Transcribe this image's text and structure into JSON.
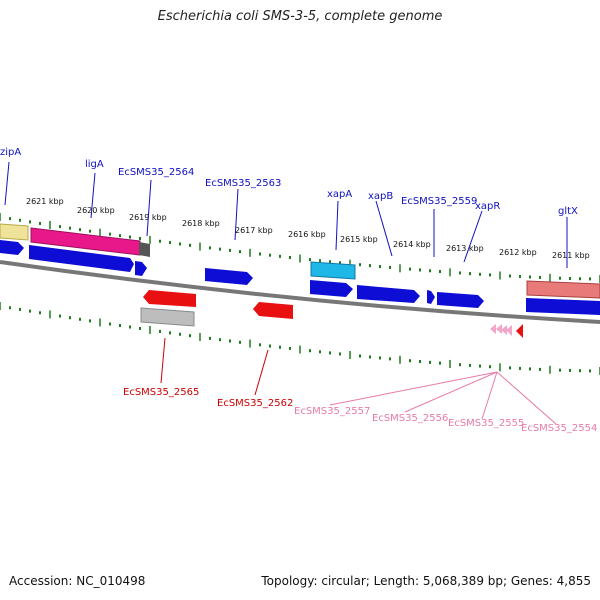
{
  "title": "Escherichia coli SMS-3-5, complete genome",
  "footer": {
    "accession": "Accession: NC_010498",
    "topology": "Topology: circular; Length: 5,068,389 bp; Genes: 4,855"
  },
  "colors": {
    "backbone": "#8c8c8c",
    "tick": "#1f7a1f",
    "top_gene_label": "#1010c0",
    "red_gene_label": "#cc0000",
    "pink_gene_label": "#e87aa8"
  },
  "scale_labels": [
    "2621 kbp",
    "2620 kbp",
    "2619 kbp",
    "2618 kbp",
    "2617 kbp",
    "2616 kbp",
    "2615 kbp",
    "2614 kbp",
    "2613 kbp",
    "2612 kbp",
    "2611 kbp"
  ],
  "top_gene_labels": [
    "zipA",
    "ligA",
    "EcSMS35_2564",
    "EcSMS35_2563",
    "xapA",
    "xapB",
    "EcSMS35_2559",
    "xapR",
    "gltX"
  ],
  "bottom_gene_labels": [
    "EcSMS35_2565",
    "EcSMS35_2562",
    "EcSMS35_2557",
    "EcSMS35_2556",
    "EcSMS35_2555",
    "EcSMS35_2554"
  ]
}
